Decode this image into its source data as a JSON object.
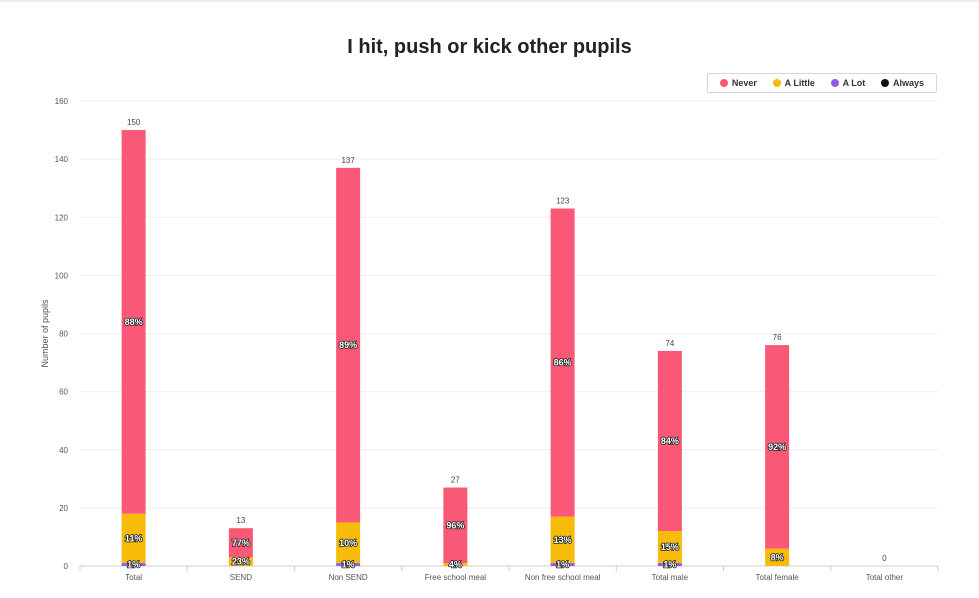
{
  "chart_data": {
    "type": "bar",
    "stacked": true,
    "title": "I hit, push or kick other pupils",
    "xlabel": "",
    "ylabel": "Number of pupils",
    "ylim": [
      0,
      160
    ],
    "yticks": [
      0,
      20,
      40,
      60,
      80,
      100,
      120,
      140,
      160
    ],
    "grid": true,
    "legend_position": "top-right",
    "categories": [
      "Total",
      "SEND",
      "Non SEND",
      "Free school meal",
      "Non free school meal",
      "Total male",
      "Total female",
      "Total other"
    ],
    "totals": [
      150,
      13,
      137,
      27,
      123,
      74,
      76,
      0
    ],
    "series": [
      {
        "name": "Never",
        "color": "#f95877",
        "values": [
          132,
          10,
          122,
          26,
          106,
          62,
          70,
          0
        ],
        "labels": [
          "88%",
          "77%",
          "89%",
          "96%",
          "86%",
          "84%",
          "92%",
          ""
        ]
      },
      {
        "name": "A Little",
        "color": "#f6bc09",
        "values": [
          17,
          3,
          14,
          1,
          16,
          11,
          6,
          0
        ],
        "labels": [
          "11%",
          "23%",
          "10%",
          "4%",
          "13%",
          "15%",
          "8%",
          ""
        ]
      },
      {
        "name": "A Lot",
        "color": "#8a5cf2",
        "values": [
          1,
          0,
          1,
          0,
          1,
          1,
          0,
          0
        ],
        "labels": [
          "1%",
          "",
          "1%",
          "",
          "1%",
          "1%",
          "",
          ""
        ]
      },
      {
        "name": "Always",
        "color": "#111111",
        "values": [
          0,
          0,
          0,
          0,
          0,
          0,
          0,
          0
        ],
        "labels": [
          "",
          "",
          "",
          "",
          "",
          "",
          "",
          ""
        ]
      }
    ]
  }
}
